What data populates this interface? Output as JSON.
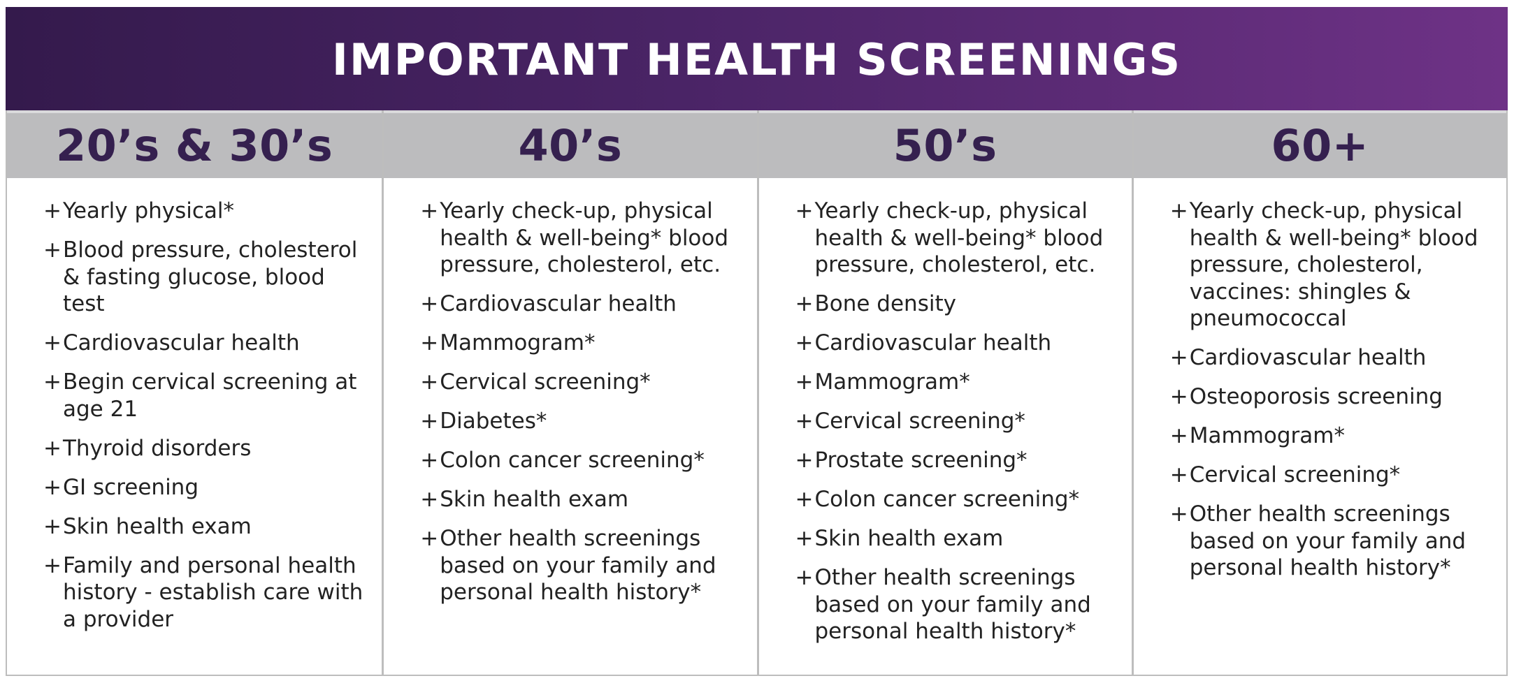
{
  "title": "IMPORTANT HEALTH SCREENINGS",
  "columns": [
    {
      "heading": "20’s & 30’s",
      "items": [
        "Yearly physical*",
        "Blood pressure, cholesterol & fasting glucose, blood test",
        "Cardiovascular health",
        "Begin cervical screening at age 21",
        "Thyroid disorders",
        "GI screening",
        "Skin health exam",
        "Family and personal health history - establish care with a provider"
      ]
    },
    {
      "heading": "40’s",
      "items": [
        "Yearly check-up, physical health & well-being* blood pressure, cholesterol, etc.",
        "Cardiovascular health",
        "Mammogram*",
        "Cervical screening*",
        "Diabetes*",
        "Colon cancer screening*",
        "Skin health exam",
        "Other health screenings based on your family and personal health history*"
      ]
    },
    {
      "heading": "50’s",
      "items": [
        "Yearly check-up, physical health & well-being* blood pressure, cholesterol, etc.",
        "Bone density",
        "Cardiovascular health",
        "Mammogram*",
        "Cervical screening*",
        "Prostate screening*",
        "Colon cancer screening*",
        "Skin health exam",
        "Other health screenings based on your family and personal health history*"
      ]
    },
    {
      "heading": "60+",
      "items": [
        "Yearly check-up, physical health & well-being* blood pressure, cholesterol, vaccines: shingles & pneumococcal",
        "Cardiovascular health",
        "Osteoporosis screening",
        "Mammogram*",
        "Cervical screening*",
        "Other health screenings based on your family and personal health history*"
      ]
    }
  ],
  "bullet_symbol": "+",
  "colors": {
    "banner_start": "#341a4c",
    "banner_end": "#6e3286",
    "header_band": "#bcbcbe",
    "heading_text": "#35204f",
    "border": "#bdbdbd"
  }
}
